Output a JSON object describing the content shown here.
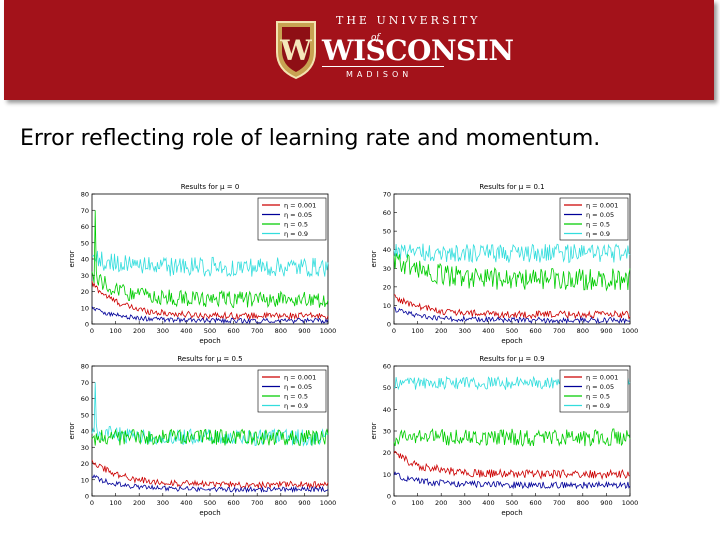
{
  "banner": {
    "crest_letter": "W",
    "line1": "THE UNIVERSITY",
    "of": "of",
    "line2": "WISCONSIN",
    "line3": "MADISON"
  },
  "slide": {
    "title": "Error reflecting role of learning rate and momentum."
  },
  "chart_data": [
    {
      "type": "line",
      "title": "Results for μ = 0",
      "xlabel": "epoch",
      "ylabel": "error",
      "xlim": [
        0,
        1000
      ],
      "ylim": [
        0,
        80
      ],
      "xticks": [
        "0",
        "100",
        "200",
        "300",
        "400",
        "500",
        "600",
        "700",
        "800",
        "900",
        "1000"
      ],
      "yticks": [
        "0",
        "10",
        "20",
        "30",
        "40",
        "50",
        "60",
        "70",
        "80"
      ],
      "legend_position": "top-right",
      "series": [
        {
          "name": "η = 0.001",
          "color": "#cc0000",
          "start": 25,
          "end": 5,
          "noise": 2,
          "spike": null
        },
        {
          "name": "η = 0.05",
          "color": "#000099",
          "start": 10,
          "end": 2,
          "noise": 1.5,
          "spike": null
        },
        {
          "name": "η = 0.5",
          "color": "#00cc00",
          "start": 30,
          "end": 15,
          "noise": 5,
          "spike": 70
        },
        {
          "name": "η = 0.9",
          "color": "#33dddd",
          "start": 40,
          "end": 35,
          "noise": 6,
          "spike": null
        }
      ]
    },
    {
      "type": "line",
      "title": "Results for μ = 0.1",
      "xlabel": "epoch",
      "ylabel": "error",
      "xlim": [
        0,
        1000
      ],
      "ylim": [
        0,
        70
      ],
      "xticks": [
        "0",
        "100",
        "200",
        "300",
        "400",
        "500",
        "600",
        "700",
        "800",
        "900",
        "1000"
      ],
      "yticks": [
        "0",
        "10",
        "20",
        "30",
        "40",
        "50",
        "60",
        "70"
      ],
      "legend_position": "top-right",
      "series": [
        {
          "name": "η = 0.001",
          "color": "#cc0000",
          "start": 15,
          "end": 5,
          "noise": 2,
          "spike": null
        },
        {
          "name": "η = 0.05",
          "color": "#000099",
          "start": 8,
          "end": 2,
          "noise": 1.5,
          "spike": null
        },
        {
          "name": "η = 0.5",
          "color": "#00cc00",
          "start": 36,
          "end": 24,
          "noise": 6,
          "spike": null
        },
        {
          "name": "η = 0.9",
          "color": "#33dddd",
          "start": 40,
          "end": 38,
          "noise": 5,
          "spike": null
        }
      ]
    },
    {
      "type": "line",
      "title": "Results for μ = 0.5",
      "xlabel": "epoch",
      "ylabel": "error",
      "xlim": [
        0,
        1000
      ],
      "ylim": [
        0,
        80
      ],
      "xticks": [
        "0",
        "100",
        "200",
        "300",
        "400",
        "500",
        "600",
        "700",
        "800",
        "900",
        "1000"
      ],
      "yticks": [
        "0",
        "10",
        "20",
        "30",
        "40",
        "50",
        "60",
        "70",
        "80"
      ],
      "legend_position": "top-right",
      "series": [
        {
          "name": "η = 0.001",
          "color": "#cc0000",
          "start": 22,
          "end": 7,
          "noise": 2,
          "spike": null
        },
        {
          "name": "η = 0.05",
          "color": "#000099",
          "start": 12,
          "end": 4,
          "noise": 1.5,
          "spike": null
        },
        {
          "name": "η = 0.5",
          "color": "#00cc00",
          "start": 36,
          "end": 36,
          "noise": 5,
          "spike": null
        },
        {
          "name": "η = 0.9",
          "color": "#33dddd",
          "start": 40,
          "end": 36,
          "noise": 5,
          "spike": 70
        }
      ]
    },
    {
      "type": "line",
      "title": "Results for μ = 0.9",
      "xlabel": "epoch",
      "ylabel": "error",
      "xlim": [
        0,
        1000
      ],
      "ylim": [
        0,
        60
      ],
      "xticks": [
        "0",
        "100",
        "200",
        "300",
        "400",
        "500",
        "600",
        "700",
        "800",
        "900",
        "1000"
      ],
      "yticks": [
        "0",
        "10",
        "20",
        "30",
        "40",
        "50",
        "60"
      ],
      "legend_position": "top-right",
      "series": [
        {
          "name": "η = 0.001",
          "color": "#cc0000",
          "start": 20,
          "end": 10,
          "noise": 2,
          "spike": null
        },
        {
          "name": "η = 0.05",
          "color": "#000099",
          "start": 10,
          "end": 5,
          "noise": 1.5,
          "spike": null
        },
        {
          "name": "η = 0.5",
          "color": "#00cc00",
          "start": 27,
          "end": 27,
          "noise": 4,
          "spike": null
        },
        {
          "name": "η = 0.9",
          "color": "#33dddd",
          "start": 52,
          "end": 52,
          "noise": 3,
          "spike": null
        }
      ]
    }
  ]
}
